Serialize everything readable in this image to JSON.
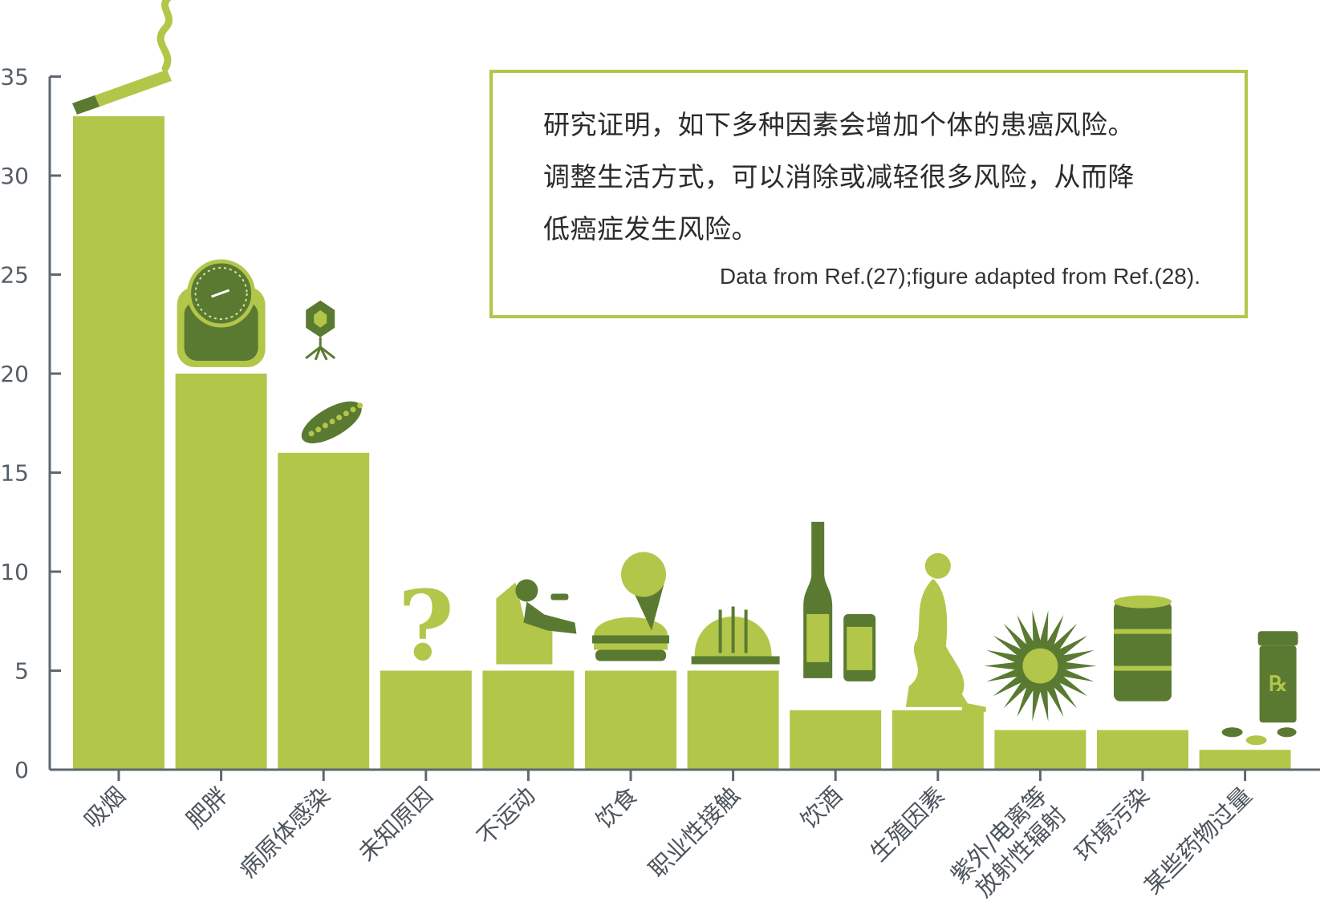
{
  "chart_data": {
    "type": "bar",
    "categories": [
      "吸烟",
      "肥胖",
      "病原体感染",
      "未知原因",
      "不运动",
      "饮食",
      "职业性接触",
      "饮酒",
      "生殖因素",
      "紫外/电离等|放射性辐射",
      "环境污染",
      "某些药物过量"
    ],
    "values": [
      33,
      20,
      16,
      5,
      5,
      5,
      5,
      3,
      3,
      2,
      2,
      1
    ],
    "ylim": [
      0,
      35
    ],
    "yticks": [
      "0",
      "5",
      "10",
      "15",
      "20",
      "25",
      "30",
      "35"
    ],
    "grid": false,
    "bar_color": "#b2c64a",
    "icons": [
      "cigarette-icon",
      "scale-icon",
      "virus-bacteria-icon",
      "question-mark-icon",
      "couch-potato-icon",
      "burger-icecream-icon",
      "hard-hat-icon",
      "wine-beer-icon",
      "pregnant-woman-icon",
      "radiation-burst-icon",
      "barrel-icon",
      "pill-bottle-icon"
    ]
  },
  "note": {
    "lines": [
      "研究证明，如下多种因素会增加个体的患癌风险。",
      "调整生活方式，可以消除或减轻很多风险，从而降",
      "低癌症发生风险。"
    ],
    "source": "Data from Ref.(27);figure adapted from Ref.(28)."
  },
  "colors": {
    "bar": "#b2c64a",
    "dark": "#5a7a32",
    "axis": "#5f6770",
    "border": "#b2c64a"
  }
}
